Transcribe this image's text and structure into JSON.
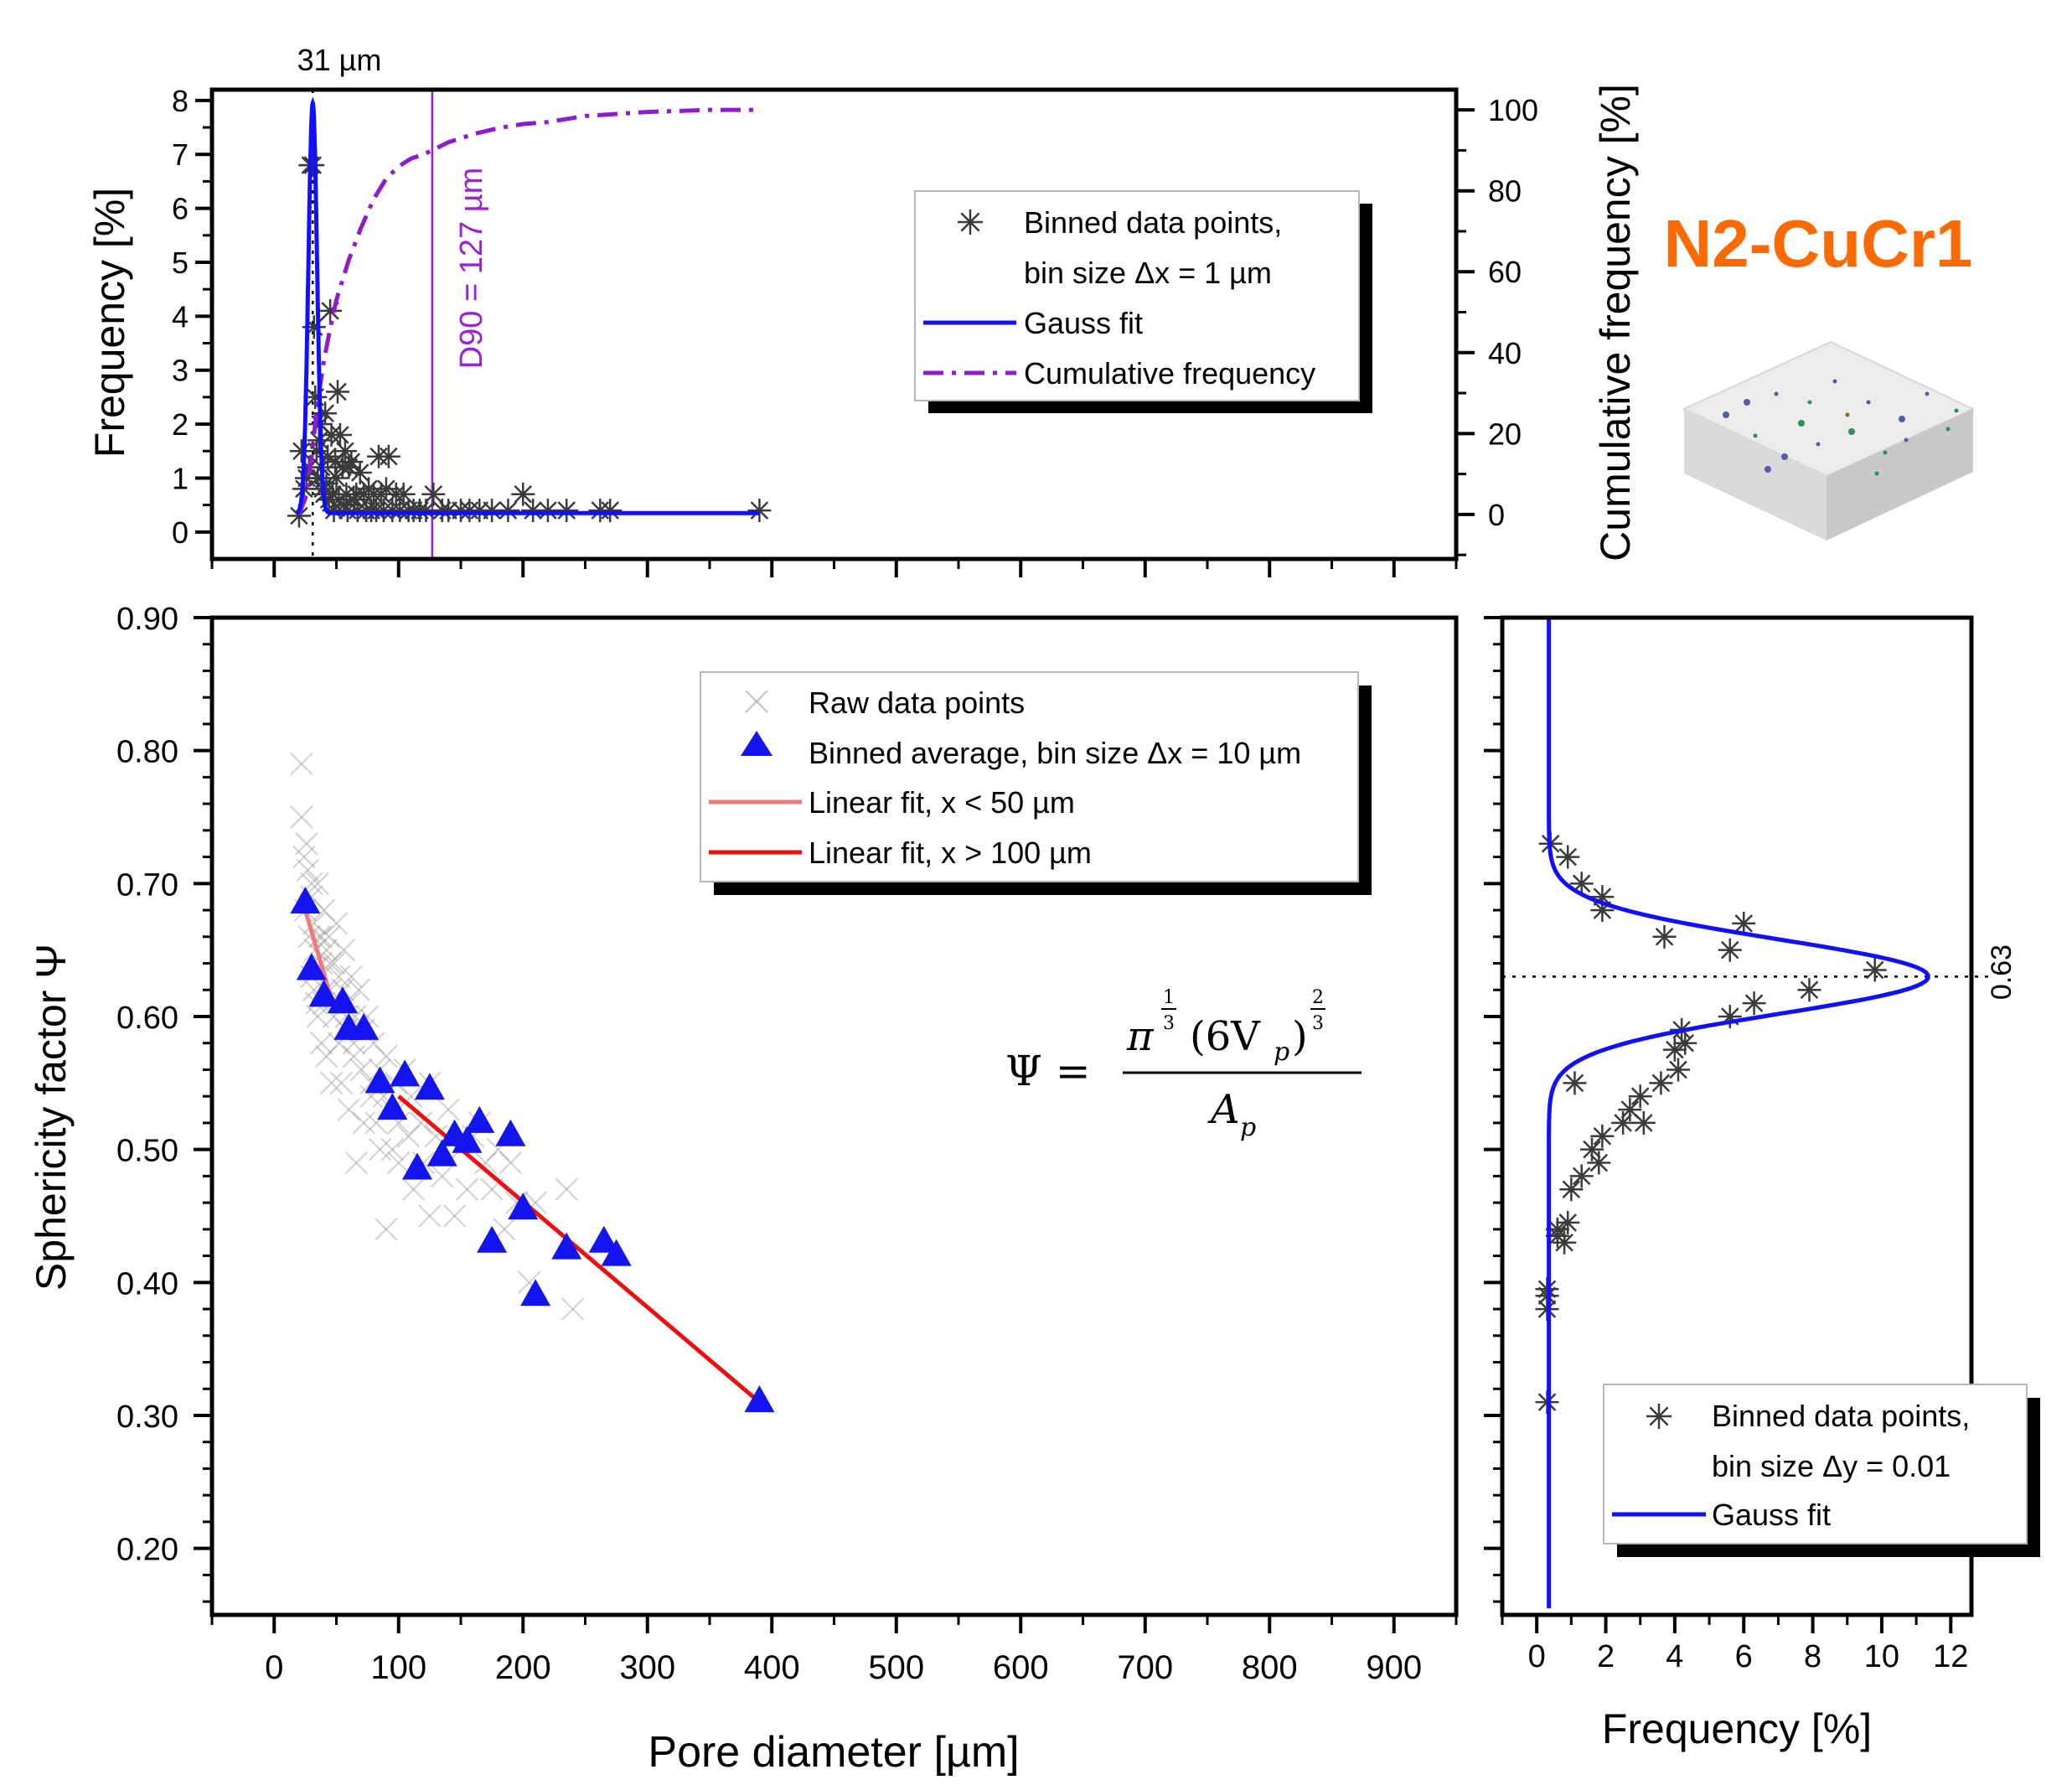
{
  "title": "N2-CuCr1",
  "colors": {
    "title": "#ff6a00",
    "gauss": "#1010ff",
    "cumulative": "#8e1bd3",
    "d90": "#9a22d6",
    "raw": "#9a9a9a",
    "binned_black": "#3a3a3a",
    "triangle": "#1414ef",
    "fit_small": "#f07a7a",
    "fit_large": "#ee1010"
  },
  "formula": {
    "lhs": "Ψ =",
    "pi": "π",
    "exp1_num": "1",
    "exp1_den": "3",
    "group": "(6V",
    "sub": "p",
    "close": ")",
    "exp2_num": "2",
    "exp2_den": "3",
    "den": "A",
    "den_sub": "p"
  },
  "chart_data": [
    {
      "id": "top-histogram",
      "type": "scatter",
      "xlim": [
        -50,
        950
      ],
      "ylabel": "Frequency [%]",
      "ylim": [
        -0.5,
        8.2
      ],
      "yticks": [
        0,
        1,
        2,
        3,
        4,
        5,
        6,
        7,
        8
      ],
      "y2label": "Cumulative frequency [%]",
      "y2lim": [
        -11,
        105
      ],
      "y2ticks": [
        0,
        20,
        40,
        60,
        80,
        100
      ],
      "peak_label": "31 µm",
      "peak_x": 31,
      "d90_label": "D90 = 127 µm",
      "d90_x": 127,
      "series": [
        {
          "name": "Binned data points, bin size Δx = 1 µm",
          "style": "asterisk",
          "x": [
            20,
            22,
            24,
            26,
            28,
            29,
            31,
            32,
            33,
            34,
            35,
            36,
            37,
            38,
            39,
            40,
            41,
            42,
            43,
            44,
            45,
            46,
            47,
            48,
            49,
            50,
            51,
            52,
            53,
            55,
            56,
            57,
            58,
            59,
            60,
            62,
            64,
            66,
            67,
            69,
            72,
            74,
            76,
            78,
            80,
            82,
            84,
            86,
            88,
            90,
            92,
            95,
            98,
            101,
            104,
            108,
            112,
            117,
            122,
            128,
            135,
            140,
            150,
            157,
            165,
            175,
            188,
            200,
            208,
            220,
            235,
            262,
            270,
            390
          ],
          "y": [
            0.3,
            1.5,
            0.8,
            1.0,
            1.2,
            6.8,
            6.8,
            3.8,
            2.5,
            1.5,
            1.0,
            1.7,
            2.0,
            1.2,
            0.8,
            0.7,
            2.2,
            0.9,
            1.4,
            0.6,
            4.1,
            1.8,
            0.7,
            0.4,
            1.3,
            1.0,
            2.6,
            0.6,
            1.8,
            1.2,
            0.5,
            1.5,
            0.7,
            0.4,
            1.2,
            1.3,
            0.6,
            0.7,
            0.4,
            1.1,
            0.7,
            0.4,
            0.8,
            0.4,
            0.7,
            0.4,
            1.4,
            0.7,
            0.4,
            0.8,
            1.4,
            0.4,
            0.7,
            0.4,
            0.7,
            0.4,
            0.4,
            0.4,
            0.4,
            0.7,
            0.4,
            0.4,
            0.4,
            0.4,
            0.4,
            0.4,
            0.4,
            0.7,
            0.4,
            0.4,
            0.4,
            0.4,
            0.4,
            0.4
          ]
        },
        {
          "name": "Gauss fit",
          "style": "line",
          "baseline": 0.35,
          "amplitude": 7.6,
          "center": 31,
          "sigma": 3.5,
          "x_range": [
            18,
            390
          ]
        },
        {
          "name": "Cumulative frequency",
          "style": "dash-dot",
          "axis": "y2",
          "x": [
            20,
            25,
            30,
            35,
            40,
            45,
            50,
            55,
            60,
            70,
            80,
            90,
            100,
            110,
            120,
            127,
            140,
            160,
            180,
            200,
            220,
            250,
            300,
            350,
            390
          ],
          "y": [
            0,
            4,
            14,
            28,
            38,
            46,
            53,
            58,
            63,
            71,
            78,
            83,
            86,
            88,
            89,
            90,
            92,
            94,
            95.5,
            96.5,
            97,
            98.5,
            99.5,
            100,
            100
          ]
        }
      ]
    },
    {
      "id": "main-scatter",
      "type": "scatter",
      "xlabel": "Pore diameter [µm]",
      "xlim": [
        -50,
        950
      ],
      "xticks": [
        0,
        100,
        200,
        300,
        400,
        500,
        600,
        700,
        800,
        900
      ],
      "ylabel": "Sphericity factor Ψ",
      "ylim": [
        0.15,
        0.9
      ],
      "yticks": [
        0.2,
        0.3,
        0.4,
        0.5,
        0.6,
        0.7,
        0.8,
        0.9
      ],
      "ytick_labels": [
        "0.20",
        "0.30",
        "0.40",
        "0.50",
        "0.60",
        "0.70",
        "0.80",
        "0.90"
      ],
      "series": [
        {
          "name": "Raw data points",
          "style": "x",
          "x": [
            22,
            22,
            24,
            25,
            27,
            28,
            30,
            30,
            32,
            32,
            33,
            35,
            35,
            36,
            38,
            38,
            40,
            40,
            42,
            42,
            44,
            45,
            46,
            48,
            48,
            50,
            52,
            52,
            54,
            55,
            56,
            58,
            60,
            60,
            62,
            64,
            65,
            66,
            68,
            70,
            72,
            72,
            75,
            78,
            80,
            82,
            85,
            85,
            88,
            90,
            90,
            95,
            95,
            98,
            100,
            100,
            105,
            108,
            110,
            112,
            118,
            120,
            125,
            125,
            130,
            135,
            140,
            145,
            150,
            155,
            160,
            165,
            170,
            175,
            180,
            185,
            190,
            195,
            205,
            210,
            235,
            240,
            30,
            38,
            26,
            58,
            45,
            78,
            34,
            64
          ],
          "y": [
            0.79,
            0.75,
            0.72,
            0.68,
            0.71,
            0.66,
            0.69,
            0.63,
            0.67,
            0.62,
            0.65,
            0.7,
            0.6,
            0.66,
            0.64,
            0.58,
            0.68,
            0.61,
            0.65,
            0.57,
            0.66,
            0.62,
            0.55,
            0.64,
            0.6,
            0.67,
            0.58,
            0.63,
            0.55,
            0.62,
            0.65,
            0.59,
            0.61,
            0.53,
            0.63,
            0.57,
            0.6,
            0.49,
            0.62,
            0.56,
            0.59,
            0.52,
            0.6,
            0.55,
            0.58,
            0.52,
            0.56,
            0.5,
            0.54,
            0.57,
            0.44,
            0.53,
            0.5,
            0.55,
            0.52,
            0.49,
            0.56,
            0.51,
            0.54,
            0.47,
            0.52,
            0.49,
            0.55,
            0.45,
            0.51,
            0.48,
            0.53,
            0.45,
            0.5,
            0.47,
            0.51,
            0.52,
            0.49,
            0.47,
            0.5,
            0.44,
            0.49,
            0.46,
            0.4,
            0.46,
            0.47,
            0.38,
            0.7,
            0.66,
            0.73,
            0.6,
            0.64,
            0.54,
            0.61,
            0.58
          ]
        },
        {
          "name": "Binned average, bin size Δx = 10 µm",
          "style": "triangle",
          "x": [
            25,
            30,
            40,
            55,
            60,
            72,
            85,
            95,
            105,
            115,
            125,
            135,
            145,
            155,
            165,
            175,
            190,
            200,
            210,
            235,
            265,
            275,
            390
          ],
          "y": [
            0.685,
            0.635,
            0.615,
            0.61,
            0.59,
            0.59,
            0.55,
            0.53,
            0.555,
            0.485,
            0.545,
            0.495,
            0.51,
            0.505,
            0.52,
            0.43,
            0.51,
            0.455,
            0.39,
            0.425,
            0.43,
            0.42,
            0.31
          ]
        },
        {
          "name": "Linear fit, x < 50 µm",
          "style": "line",
          "x": [
            25,
            47
          ],
          "y": [
            0.68,
            0.61
          ]
        },
        {
          "name": "Linear fit, x > 100 µm",
          "style": "line",
          "x": [
            100,
            390
          ],
          "y": [
            0.54,
            0.31
          ]
        }
      ]
    },
    {
      "id": "side-histogram",
      "type": "scatter",
      "xlabel": "Frequency [%]",
      "xlim": [
        -1,
        12.6
      ],
      "xticks": [
        0,
        2,
        4,
        6,
        8,
        10,
        12
      ],
      "ylim": [
        0.15,
        0.9
      ],
      "peak_label": "0.63",
      "peak_y": 0.63,
      "series": [
        {
          "name": "Binned data points, bin size Δy = 0.01",
          "style": "asterisk",
          "x": [
            0.3,
            0.3,
            0.3,
            0.3,
            0.8,
            0.6,
            0.9,
            0.6,
            1.0,
            1.3,
            1.1,
            1.8,
            1.6,
            1.9,
            2.5,
            3.1,
            2.7,
            3.0,
            3.6,
            4.1,
            4.0,
            4.3,
            4.2,
            5.6,
            6.3,
            7.9,
            9.8,
            3.7,
            5.6,
            6.0,
            1.9,
            1.9,
            1.3,
            0.9,
            0.4
          ],
          "y": [
            0.31,
            0.38,
            0.39,
            0.395,
            0.43,
            0.44,
            0.445,
            0.435,
            0.47,
            0.48,
            0.55,
            0.49,
            0.5,
            0.51,
            0.52,
            0.52,
            0.53,
            0.54,
            0.55,
            0.56,
            0.575,
            0.58,
            0.59,
            0.6,
            0.61,
            0.62,
            0.635,
            0.66,
            0.65,
            0.67,
            0.68,
            0.69,
            0.7,
            0.72,
            0.73
          ]
        },
        {
          "name": "Gauss fit",
          "style": "line",
          "baseline": 0.35,
          "amplitude": 11.0,
          "center": 0.63,
          "sigma": 0.028
        }
      ]
    }
  ],
  "legends": {
    "top": [
      "Binned data points,",
      "bin size Δx = 1 µm",
      "Gauss fit",
      "Cumulative frequency"
    ],
    "main": [
      "Raw data points",
      "Binned average, bin size Δx = 10 µm",
      "Linear fit, x < 50 µm",
      "Linear fit, x > 100 µm"
    ],
    "side": [
      "Binned data points,",
      "bin size Δy = 0.01",
      "Gauss fit"
    ]
  }
}
